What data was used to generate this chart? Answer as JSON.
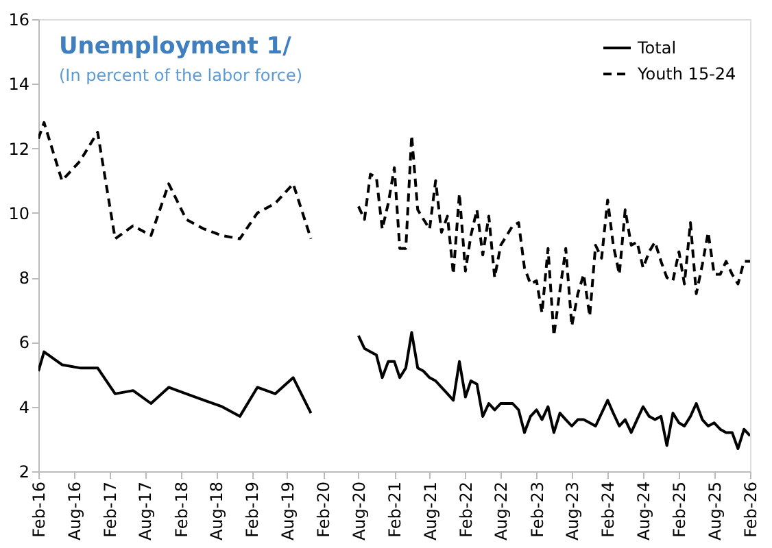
{
  "chart_data": {
    "type": "line",
    "title": "Unemployment 1/",
    "subtitle": "(In percent of the labor force)",
    "x": [
      "2016-02",
      "2016-03",
      "2016-06",
      "2016-09",
      "2016-12",
      "2017-03",
      "2017-06",
      "2017-09",
      "2017-12",
      "2018-03",
      "2018-06",
      "2018-09",
      "2018-12",
      "2019-03",
      "2019-06",
      "2019-09",
      "2019-12",
      "2020-05",
      "2020-08",
      "2020-09",
      "2020-10",
      "2020-11",
      "2020-12",
      "2021-01",
      "2021-02",
      "2021-03",
      "2021-04",
      "2021-05",
      "2021-06",
      "2021-07",
      "2021-08",
      "2021-09",
      "2021-10",
      "2021-11",
      "2021-12",
      "2022-01",
      "2022-02",
      "2022-03",
      "2022-04",
      "2022-05",
      "2022-06",
      "2022-07",
      "2022-08",
      "2022-09",
      "2022-10",
      "2022-11",
      "2022-12",
      "2023-01",
      "2023-02",
      "2023-03",
      "2023-04",
      "2023-05",
      "2023-06",
      "2023-07",
      "2023-08",
      "2023-09",
      "2023-10",
      "2023-11",
      "2023-12",
      "2024-01",
      "2024-02",
      "2024-03",
      "2024-04",
      "2024-05",
      "2024-06",
      "2024-07",
      "2024-08",
      "2024-09",
      "2024-10",
      "2024-11",
      "2024-12",
      "2025-01",
      "2025-02",
      "2025-03",
      "2025-04",
      "2025-05",
      "2025-06",
      "2025-07",
      "2025-08",
      "2025-09",
      "2025-10",
      "2025-11",
      "2025-12",
      "2026-01",
      "2026-02"
    ],
    "series": [
      {
        "name": "Total",
        "color": "#000000",
        "line_style": "solid",
        "values": [
          5.1,
          5.7,
          5.3,
          5.2,
          5.2,
          4.4,
          4.5,
          4.1,
          4.6,
          4.4,
          4.2,
          4.0,
          3.7,
          4.6,
          4.4,
          4.9,
          3.8,
          null,
          6.2,
          5.8,
          5.7,
          5.6,
          4.9,
          5.4,
          5.4,
          4.9,
          5.2,
          6.3,
          5.2,
          5.1,
          4.9,
          4.8,
          4.6,
          4.4,
          4.2,
          5.4,
          4.3,
          4.8,
          4.7,
          3.7,
          4.1,
          3.9,
          4.1,
          4.1,
          4.1,
          3.9,
          3.2,
          3.7,
          3.9,
          3.6,
          4.0,
          3.2,
          3.8,
          3.6,
          3.4,
          3.6,
          3.6,
          3.5,
          3.4,
          3.8,
          4.2,
          3.8,
          3.4,
          3.6,
          3.2,
          3.6,
          4.0,
          3.7,
          3.6,
          3.7,
          2.8,
          3.8,
          3.5,
          3.4,
          3.7,
          4.1,
          3.6,
          3.4,
          3.5,
          3.3,
          3.2,
          3.2,
          2.7,
          3.3,
          3.1
        ]
      },
      {
        "name": "Youth 15-24",
        "color": "#000000",
        "line_style": "dashed",
        "values": [
          12.3,
          12.8,
          11.0,
          11.6,
          12.5,
          9.2,
          9.6,
          9.3,
          10.9,
          9.8,
          9.5,
          9.3,
          9.2,
          10.0,
          10.3,
          10.9,
          9.2,
          null,
          10.2,
          9.8,
          11.2,
          11.1,
          9.5,
          10.3,
          11.4,
          8.9,
          8.9,
          12.4,
          10.1,
          9.8,
          9.5,
          11.0,
          9.4,
          9.9,
          8.1,
          10.6,
          8.2,
          9.3,
          10.1,
          8.7,
          9.9,
          8.0,
          9.0,
          9.3,
          9.6,
          9.7,
          8.3,
          7.8,
          7.9,
          6.9,
          8.9,
          6.2,
          7.6,
          8.9,
          6.5,
          7.5,
          8.1,
          6.8,
          9.0,
          8.6,
          10.4,
          9.0,
          8.1,
          10.1,
          9.0,
          9.1,
          8.3,
          8.8,
          9.1,
          8.5,
          8.0,
          7.9,
          8.8,
          7.8,
          9.7,
          7.5,
          8.4,
          9.4,
          8.1,
          8.1,
          8.5,
          8.1,
          7.8,
          8.5,
          8.5
        ]
      }
    ],
    "xlim": [
      "2016-02",
      "2026-02"
    ],
    "xticks": [
      {
        "value": "2016-02",
        "label": "Feb-16"
      },
      {
        "value": "2016-08",
        "label": "Aug-16"
      },
      {
        "value": "2017-02",
        "label": "Feb-17"
      },
      {
        "value": "2017-08",
        "label": "Aug-17"
      },
      {
        "value": "2018-02",
        "label": "Feb-18"
      },
      {
        "value": "2018-08",
        "label": "Aug-18"
      },
      {
        "value": "2019-02",
        "label": "Feb-19"
      },
      {
        "value": "2019-08",
        "label": "Aug-19"
      },
      {
        "value": "2020-02",
        "label": "Feb-20"
      },
      {
        "value": "2020-08",
        "label": "Aug-20"
      },
      {
        "value": "2021-02",
        "label": "Feb-21"
      },
      {
        "value": "2021-08",
        "label": "Aug-21"
      },
      {
        "value": "2022-02",
        "label": "Feb-22"
      },
      {
        "value": "2022-08",
        "label": "Aug-22"
      },
      {
        "value": "2023-02",
        "label": "Feb-23"
      },
      {
        "value": "2023-08",
        "label": "Aug-23"
      },
      {
        "value": "2024-02",
        "label": "Feb-24"
      },
      {
        "value": "2024-08",
        "label": "Aug-24"
      },
      {
        "value": "2025-02",
        "label": "Feb-25"
      },
      {
        "value": "2025-08",
        "label": "Aug-25"
      },
      {
        "value": "2026-02",
        "label": "Feb-26"
      }
    ],
    "ylim": [
      2,
      16
    ],
    "yticks": [
      2,
      4,
      6,
      8,
      10,
      12,
      14,
      16
    ],
    "grid": false,
    "legend": "top right"
  }
}
